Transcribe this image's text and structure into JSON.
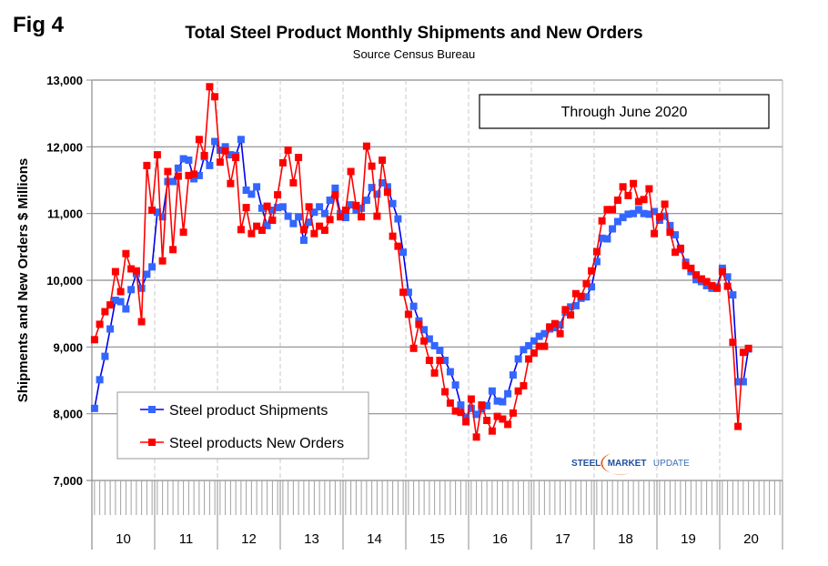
{
  "figure_label": "Fig 4",
  "annotation": "Through June 2020",
  "logo": {
    "bold": "STEEL",
    "mid": "MARKET",
    "light": "UPDATE"
  },
  "chart_data": {
    "type": "line",
    "title": "Total Steel Product Monthly Shipments and New Orders",
    "subtitle": "Source Census Bureau",
    "xlabel": "",
    "ylabel": "Shipments and New Orders $ Millions",
    "ylim": [
      7000,
      13000
    ],
    "yticks": [
      7000,
      8000,
      9000,
      10000,
      11000,
      12000,
      13000
    ],
    "ytick_labels": [
      "7,000",
      "8,000",
      "9,000",
      "10,000",
      "11,000",
      "12,000",
      "13,000"
    ],
    "x_categories": [
      "10",
      "11",
      "12",
      "13",
      "14",
      "15",
      "16",
      "17",
      "18",
      "19",
      "20"
    ],
    "x_start": "Jan 2010",
    "x_end": "Jun 2020",
    "x_unit": "month",
    "grid": "horizontal solid at y ticks; vertical dashed at year boundaries",
    "legend_position": "bottom-left",
    "series": [
      {
        "name": "Steel product Shipments",
        "color": "#3366ff",
        "line_color": "#0000ee",
        "marker": "square",
        "values": [
          8080,
          8510,
          8860,
          9270,
          9700,
          9680,
          9570,
          9860,
          10100,
          9880,
          10090,
          10200,
          11020,
          10950,
          11480,
          11480,
          11680,
          11820,
          11800,
          11520,
          11570,
          11850,
          11720,
          12080,
          11950,
          12000,
          11880,
          11870,
          12110,
          11350,
          11290,
          11400,
          11080,
          10820,
          11050,
          11090,
          11100,
          10960,
          10850,
          10950,
          10600,
          10870,
          11020,
          11100,
          11000,
          11200,
          11380,
          11000,
          10940,
          11130,
          11050,
          11080,
          11200,
          11390,
          11290,
          11460,
          11400,
          11150,
          10920,
          10420,
          9820,
          9610,
          9390,
          9260,
          9120,
          9020,
          8950,
          8800,
          8630,
          8430,
          8130,
          7940,
          8080,
          7990,
          8070,
          8120,
          8340,
          8190,
          8180,
          8300,
          8580,
          8820,
          8960,
          9020,
          9090,
          9160,
          9200,
          9270,
          9290,
          9330,
          9520,
          9600,
          9620,
          9730,
          9750,
          9900,
          10280,
          10630,
          10620,
          10770,
          10880,
          10940,
          10990,
          11000,
          11060,
          11000,
          10990,
          11030,
          10900,
          10960,
          10820,
          10680,
          10460,
          10270,
          10130,
          10010,
          9980,
          9920,
          9880,
          9900,
          10180,
          10050,
          9780,
          8480,
          8480,
          8970
        ]
      },
      {
        "name": "Steel products New Orders",
        "color": "#ff0000",
        "line_color": "#ff0000",
        "marker": "square",
        "values": [
          9110,
          9340,
          9530,
          9630,
          10130,
          9830,
          10400,
          10170,
          10140,
          9380,
          11720,
          11050,
          11880,
          10290,
          11630,
          10460,
          11560,
          10720,
          11570,
          11590,
          12110,
          11870,
          12900,
          12750,
          11770,
          11940,
          11450,
          11840,
          10760,
          11090,
          10700,
          10810,
          10750,
          11110,
          10900,
          11280,
          11760,
          11950,
          11460,
          11840,
          10760,
          11100,
          10700,
          10810,
          10750,
          10910,
          11280,
          10950,
          11050,
          11630,
          11120,
          10950,
          12010,
          11710,
          10960,
          11800,
          11320,
          10660,
          10510,
          9820,
          9490,
          8980,
          9340,
          9090,
          8800,
          8610,
          8800,
          8330,
          8160,
          8040,
          8020,
          7880,
          8220,
          7650,
          8130,
          7900,
          7740,
          7960,
          7920,
          7840,
          8010,
          8340,
          8420,
          8820,
          8910,
          9010,
          9010,
          9300,
          9350,
          9200,
          9560,
          9480,
          9800,
          9760,
          9950,
          10140,
          10430,
          10890,
          11060,
          11060,
          11200,
          11400,
          11270,
          11450,
          11180,
          11210,
          11370,
          10700,
          10950,
          11140,
          10720,
          10420,
          10480,
          10220,
          10180,
          10080,
          10020,
          9980,
          9920,
          9880,
          10130,
          9910,
          9070,
          7810,
          8920,
          8980
        ]
      }
    ]
  }
}
